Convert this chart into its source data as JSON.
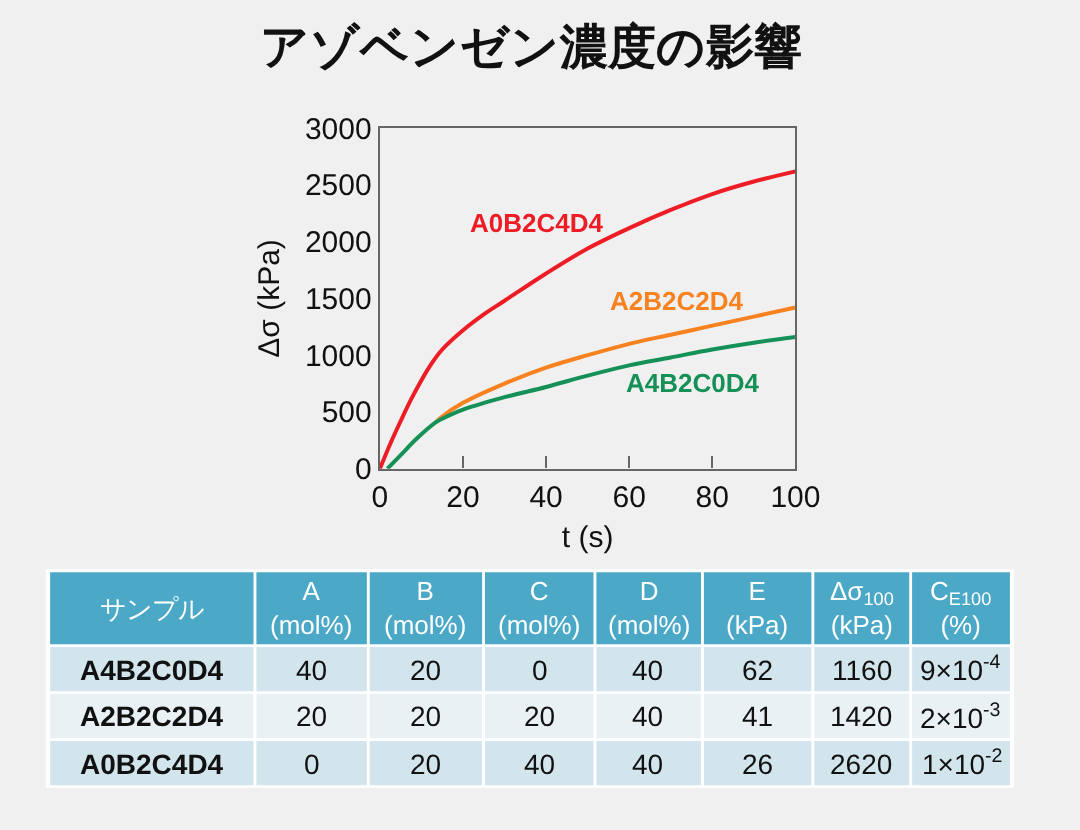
{
  "chart_data": [
    {
      "type": "line",
      "title": "アゾベンゼン濃度の影響",
      "xlabel": "t (s)",
      "ylabel": "Δσ (kPa)",
      "xlim": [
        0,
        100
      ],
      "xticks": [
        0,
        20,
        40,
        60,
        80,
        100
      ],
      "ylim": [
        0,
        3000
      ],
      "yticks": [
        0,
        500,
        1000,
        1500,
        2000,
        2500,
        3000
      ],
      "series": [
        {
          "name": "A0B2C4D4",
          "color": "#ee1c25",
          "x": [
            0,
            2.5,
            5,
            7.5,
            10,
            12.5,
            15,
            20,
            25,
            30,
            40,
            50,
            60,
            70,
            80,
            90,
            100
          ],
          "values": [
            0,
            220,
            420,
            610,
            780,
            930,
            1050,
            1220,
            1360,
            1480,
            1720,
            1940,
            2120,
            2280,
            2420,
            2530,
            2620
          ]
        },
        {
          "name": "A2B2C2D4",
          "color": "#f7821f",
          "x": [
            13.5,
            15,
            20,
            30,
            40,
            50,
            60,
            70,
            80,
            90,
            100
          ],
          "values": [
            410,
            460,
            580,
            750,
            890,
            1000,
            1100,
            1180,
            1260,
            1340,
            1420
          ]
        },
        {
          "name": "A4B2C0D4",
          "color": "#159157",
          "x": [
            1.8,
            5,
            9,
            13.5,
            15,
            20,
            30,
            40,
            50,
            60,
            70,
            80,
            90,
            100
          ],
          "values": [
            0,
            120,
            270,
            410,
            440,
            520,
            630,
            720,
            820,
            910,
            980,
            1050,
            1110,
            1160
          ]
        }
      ]
    },
    {
      "type": "other",
      "categories": [
        "サンプル",
        "A\n(mol%)",
        "B\n(mol%)",
        "C\n(mol%)",
        "D\n(mol%)",
        "E\n(kPa)",
        "Δσ$_{100}$\n(kPa)",
        "C$_{E100}$\n(%)"
      ],
      "cell_labels": [
        [
          "A4B2C0D4",
          "40",
          "20",
          "0",
          "40",
          "62",
          "1160",
          "9×10$^{-4}$"
        ],
        [
          "A2B2C2D4",
          "20",
          "20",
          "20",
          "40",
          "41",
          "1420",
          "2×10$^{-3}$"
        ],
        [
          "A0B2C4D4",
          "0",
          "20",
          "40",
          "40",
          "26",
          "2620",
          "1×10$^{-2}$"
        ]
      ]
    }
  ]
}
